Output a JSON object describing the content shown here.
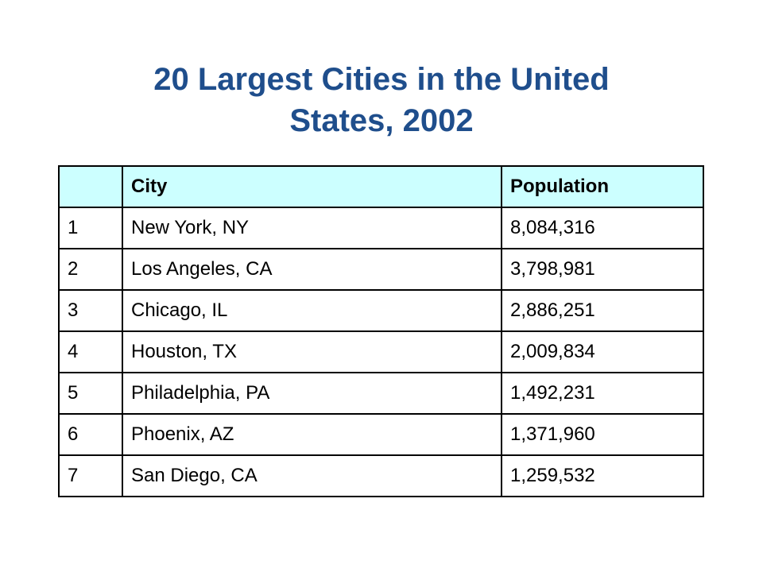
{
  "title": {
    "line1": "20 Largest Cities in the United",
    "line2": "States, 2002"
  },
  "colors": {
    "title": "#1f4e8c",
    "header_background": "#ccffff",
    "border": "#000000"
  },
  "table": {
    "headers": [
      "",
      "City",
      "Population"
    ],
    "rows": [
      {
        "rank": "1",
        "city": "New York, NY",
        "population": "8,084,316"
      },
      {
        "rank": "2",
        "city": "Los Angeles, CA",
        "population": "3,798,981"
      },
      {
        "rank": "3",
        "city": "Chicago, IL",
        "population": "2,886,251"
      },
      {
        "rank": "4",
        "city": "Houston, TX",
        "population": "2,009,834"
      },
      {
        "rank": "5",
        "city": "Philadelphia, PA",
        "population": "1,492,231"
      },
      {
        "rank": "6",
        "city": "Phoenix, AZ",
        "population": "1,371,960"
      },
      {
        "rank": "7",
        "city": "San Diego, CA",
        "population": "1,259,532"
      }
    ]
  }
}
